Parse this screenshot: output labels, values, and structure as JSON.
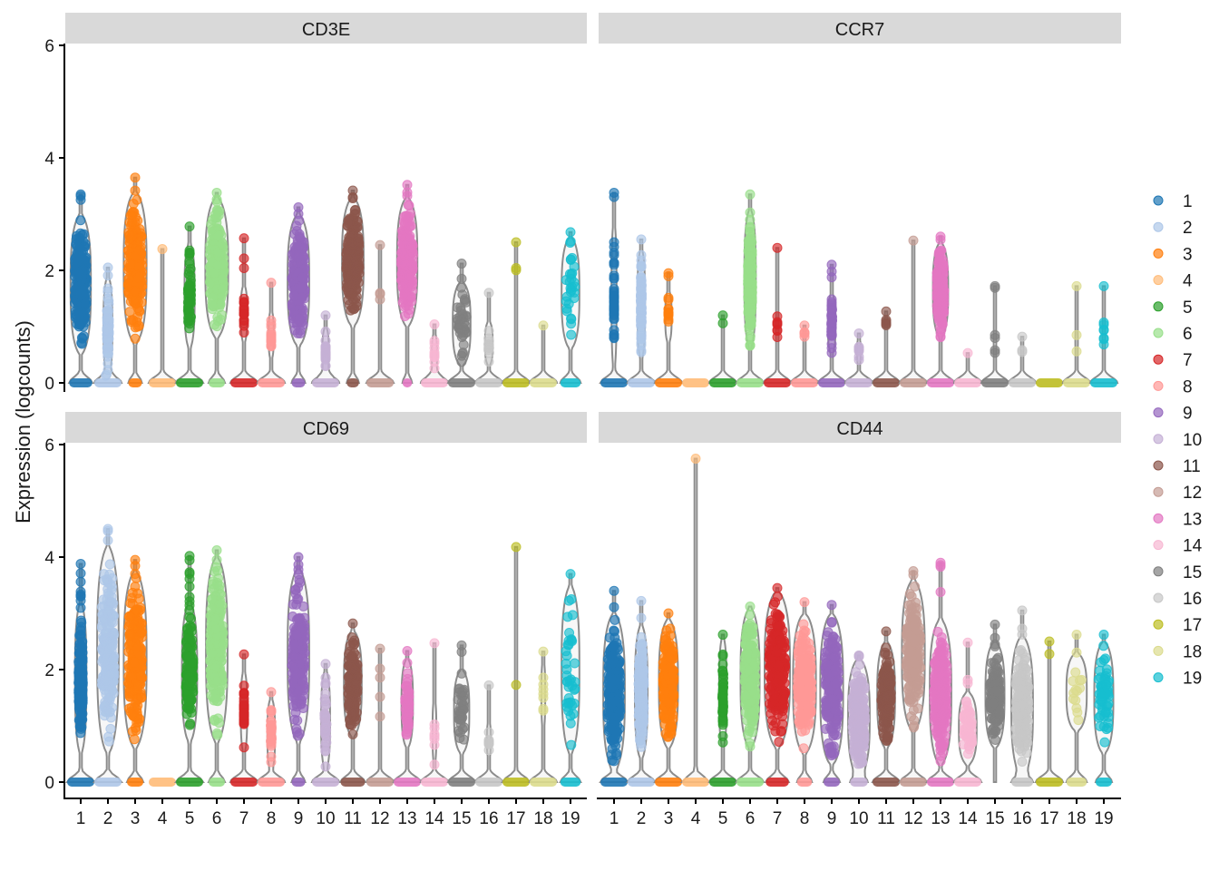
{
  "chart_data": {
    "type": "violin",
    "ylabel": "Expression (logcounts)",
    "xlabel": "",
    "ylim": [
      0,
      6
    ],
    "yticks": [
      "0",
      "2",
      "4",
      "6"
    ],
    "categories": [
      "1",
      "2",
      "3",
      "4",
      "5",
      "6",
      "7",
      "8",
      "9",
      "10",
      "11",
      "12",
      "13",
      "14",
      "15",
      "16",
      "17",
      "18",
      "19"
    ],
    "colors": [
      "#1f77b4",
      "#aec7e8",
      "#ff7f0e",
      "#ffbb78",
      "#2ca02c",
      "#98df8a",
      "#d62728",
      "#ff9896",
      "#9467bd",
      "#c5b0d5",
      "#8c564b",
      "#c49c94",
      "#e377c2",
      "#f7b6d2",
      "#7f7f7f",
      "#c7c7c7",
      "#bcbd22",
      "#dbdb8d",
      "#17becf"
    ],
    "legend": {
      "placement": "right",
      "entries": [
        "1",
        "2",
        "3",
        "4",
        "5",
        "6",
        "7",
        "8",
        "9",
        "10",
        "11",
        "12",
        "13",
        "14",
        "15",
        "16",
        "17",
        "18",
        "19"
      ]
    },
    "value_fields": [
      "max",
      "bulk_low",
      "bulk_high",
      "zero_fraction",
      "n_expressing",
      "bulk_density"
    ],
    "panels": [
      {
        "title": "CD3E",
        "clusters": [
          [
            3.35,
            0.5,
            3.0,
            0.85,
            300,
            0.8
          ],
          [
            2.05,
            0.1,
            1.9,
            1,
            60,
            0.35
          ],
          [
            3.65,
            0.7,
            3.4,
            0.5,
            300,
            0.9
          ],
          [
            2.38,
            2.38,
            2.38,
            1,
            1,
            0
          ],
          [
            2.78,
            0.6,
            2.5,
            1,
            60,
            0.4
          ],
          [
            3.38,
            0.8,
            3.3,
            0.6,
            400,
            0.9
          ],
          [
            2.57,
            0.7,
            1.75,
            1,
            20,
            0.25
          ],
          [
            1.78,
            0.4,
            1.3,
            1,
            15,
            0.2
          ],
          [
            3.12,
            0.65,
            3.0,
            0.5,
            300,
            0.85
          ],
          [
            1.2,
            0.1,
            1.0,
            1,
            20,
            0.25
          ],
          [
            3.42,
            1.0,
            3.3,
            0.45,
            300,
            0.85
          ],
          [
            2.45,
            1.3,
            1.7,
            1,
            4,
            0.1
          ],
          [
            3.52,
            1.0,
            3.3,
            0.35,
            300,
            0.8
          ],
          [
            1.04,
            0.1,
            0.9,
            1,
            10,
            0.2
          ],
          [
            2.12,
            0.3,
            1.8,
            1,
            40,
            0.7
          ],
          [
            1.6,
            0.3,
            1.1,
            1,
            12,
            0.3
          ],
          [
            2.5,
            1.9,
            2.1,
            1,
            3,
            0.05
          ],
          [
            1.02,
            1.02,
            1.02,
            1,
            1,
            0
          ],
          [
            2.68,
            0.6,
            2.6,
            0.75,
            30,
            0.7
          ]
        ]
      },
      {
        "title": "CCR7",
        "clusters": [
          [
            3.38,
            0.2,
            2.9,
            1,
            40,
            0.2
          ],
          [
            2.55,
            0.4,
            2.4,
            1,
            80,
            0.3
          ],
          [
            1.95,
            0.7,
            1.65,
            1,
            15,
            0.25
          ],
          [
            0,
            0,
            0,
            1,
            0,
            0
          ],
          [
            1.2,
            1.05,
            1.2,
            1,
            2,
            0.05
          ],
          [
            3.35,
            0.6,
            3.1,
            1,
            300,
            0.45
          ],
          [
            2.4,
            0.5,
            1.4,
            1,
            8,
            0.1
          ],
          [
            1.02,
            0.7,
            1.0,
            1,
            5,
            0.1
          ],
          [
            2.1,
            0.5,
            1.6,
            1,
            40,
            0.3
          ],
          [
            0.88,
            0.3,
            0.8,
            1,
            8,
            0.15
          ],
          [
            1.27,
            1.0,
            1.2,
            1,
            6,
            0.1
          ],
          [
            2.53,
            2.53,
            2.53,
            1,
            1,
            0
          ],
          [
            2.6,
            0.8,
            2.5,
            1,
            200,
            0.6
          ],
          [
            0.53,
            0.53,
            0.53,
            1,
            1,
            0
          ],
          [
            1.72,
            0.3,
            1.1,
            1,
            6,
            0.1
          ],
          [
            0.82,
            0.5,
            0.7,
            1,
            3,
            0.1
          ],
          [
            0,
            0,
            0,
            1,
            0,
            0
          ],
          [
            1.72,
            0.5,
            1.0,
            1,
            3,
            0.1
          ],
          [
            1.72,
            0.4,
            1.3,
            1,
            8,
            0.1
          ]
        ]
      },
      {
        "title": "CD69",
        "clusters": [
          [
            3.88,
            0.5,
            3.2,
            1,
            200,
            0.45
          ],
          [
            4.5,
            0.5,
            4.2,
            1,
            400,
            0.85
          ],
          [
            3.95,
            0.6,
            3.75,
            0.6,
            400,
            0.9
          ],
          [
            0,
            0,
            0,
            1,
            0,
            0
          ],
          [
            4.02,
            0.7,
            3.2,
            1,
            150,
            0.6
          ],
          [
            4.12,
            0.7,
            4.0,
            0.6,
            400,
            0.85
          ],
          [
            2.27,
            0.5,
            2.0,
            1,
            30,
            0.25
          ],
          [
            1.6,
            0.2,
            1.5,
            1,
            25,
            0.3
          ],
          [
            4.0,
            0.7,
            3.8,
            0.5,
            400,
            0.85
          ],
          [
            2.1,
            0.2,
            2.0,
            1,
            40,
            0.35
          ],
          [
            2.82,
            0.8,
            2.7,
            0.9,
            150,
            0.7
          ],
          [
            2.37,
            0.9,
            2.3,
            1,
            5,
            0.1
          ],
          [
            2.33,
            0.6,
            2.2,
            1,
            60,
            0.45
          ],
          [
            2.47,
            0.3,
            1.5,
            1,
            8,
            0.15
          ],
          [
            2.43,
            0.5,
            2.0,
            1,
            40,
            0.6
          ],
          [
            1.72,
            0.4,
            1.1,
            1,
            8,
            0.15
          ],
          [
            4.18,
            1.75,
            1.75,
            1,
            2,
            0.05
          ],
          [
            2.32,
            0.9,
            2.2,
            1,
            8,
            0.15
          ],
          [
            3.7,
            0.5,
            3.5,
            0.75,
            40,
            0.7
          ]
        ]
      },
      {
        "title": "CD44",
        "clusters": [
          [
            3.4,
            0.2,
            3.0,
            1,
            300,
            0.85
          ],
          [
            3.22,
            0.4,
            2.8,
            1,
            200,
            0.5
          ],
          [
            3.0,
            0.6,
            2.9,
            1,
            300,
            0.75
          ],
          [
            5.75,
            5.75,
            5.75,
            1,
            1,
            0
          ],
          [
            2.62,
            0.6,
            2.6,
            1,
            40,
            0.3
          ],
          [
            3.12,
            0.6,
            3.1,
            1,
            400,
            0.75
          ],
          [
            3.45,
            0.6,
            3.4,
            0.85,
            400,
            1.0
          ],
          [
            3.2,
            0.5,
            3.0,
            0.55,
            400,
            0.9
          ],
          [
            3.15,
            0.3,
            3.0,
            0.6,
            300,
            0.9
          ],
          [
            2.25,
            0.1,
            2.2,
            0.65,
            300,
            0.85
          ],
          [
            2.68,
            0.6,
            2.5,
            1,
            150,
            0.7
          ],
          [
            3.75,
            0.9,
            3.6,
            1,
            300,
            0.9
          ],
          [
            3.9,
            0.3,
            2.9,
            1,
            300,
            0.85
          ],
          [
            2.48,
            0.3,
            1.6,
            1,
            60,
            0.7
          ],
          [
            2.8,
            0.6,
            2.5,
            0,
            150,
            0.75
          ],
          [
            3.05,
            0.1,
            2.6,
            0.8,
            200,
            0.85
          ],
          [
            2.5,
            1.9,
            2.5,
            1,
            2,
            0.05
          ],
          [
            2.62,
            0.9,
            2.3,
            0.75,
            15,
            0.8
          ],
          [
            2.62,
            0.5,
            2.5,
            0.6,
            60,
            0.75
          ]
        ]
      }
    ]
  }
}
